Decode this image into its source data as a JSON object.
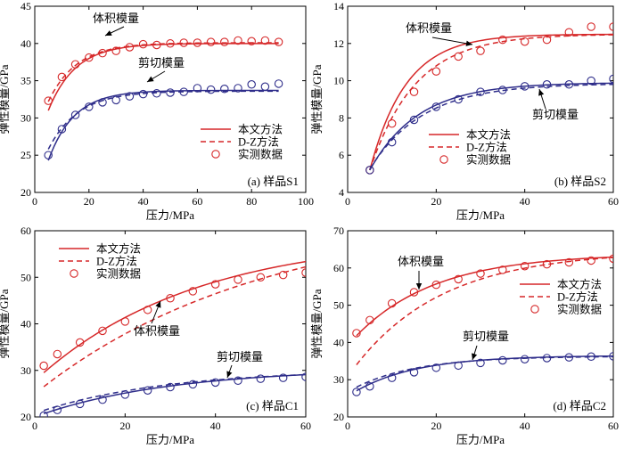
{
  "colors": {
    "ours": "#d62728",
    "dz": "#d62728",
    "meas": "#d62728",
    "shear": "#2e2d8a"
  },
  "chart_data": [
    {
      "id": "s1",
      "type": "line",
      "tag": "(a) 样品S1",
      "xlabel": "压力/MPa",
      "ylabel": "弹性模量/GPa",
      "xlim": [
        0,
        100
      ],
      "ylim": [
        20,
        45
      ],
      "xticks": [
        0,
        20,
        40,
        60,
        80,
        100
      ],
      "yticks": [
        20,
        25,
        30,
        35,
        40,
        45
      ],
      "annotations": {
        "bulk": "体积模量",
        "shear": "剪切模量"
      },
      "legend": {
        "ours": "本文方法",
        "dz": "D-Z方法",
        "meas": "实测数据"
      },
      "show_legend": true,
      "legend_pos": "bottom-right",
      "series": [
        {
          "name": "体积模量",
          "ours": {
            "type": "exp",
            "from": 5,
            "to": 90,
            "a": 40.0,
            "b": 9.0,
            "c": 10
          },
          "dz": {
            "type": "exp",
            "from": 5,
            "to": 90,
            "a": 40.1,
            "b": 7.9,
            "c": 10.5
          },
          "measured": [
            [
              5,
              32.3
            ],
            [
              10,
              35.5
            ],
            [
              15,
              37.2
            ],
            [
              20,
              38.1
            ],
            [
              25,
              38.7
            ],
            [
              30,
              39.0
            ],
            [
              35,
              39.5
            ],
            [
              40,
              39.9
            ],
            [
              45,
              39.8
            ],
            [
              50,
              40.0
            ],
            [
              55,
              40.1
            ],
            [
              60,
              40.1
            ],
            [
              65,
              40.2
            ],
            [
              70,
              40.2
            ],
            [
              75,
              40.4
            ],
            [
              80,
              40.3
            ],
            [
              85,
              40.4
            ],
            [
              90,
              40.2
            ]
          ]
        },
        {
          "name": "剪切模量",
          "ours": {
            "type": "exp",
            "from": 5,
            "to": 90,
            "a": 33.7,
            "b": 9.4,
            "c": 9.5
          },
          "dz": {
            "type": "exp",
            "from": 5,
            "to": 90,
            "a": 33.6,
            "b": 7.8,
            "c": 11
          },
          "measured": [
            [
              5,
              25.0
            ],
            [
              10,
              28.5
            ],
            [
              15,
              30.4
            ],
            [
              20,
              31.5
            ],
            [
              25,
              32.1
            ],
            [
              30,
              32.4
            ],
            [
              35,
              32.9
            ],
            [
              40,
              33.2
            ],
            [
              45,
              33.3
            ],
            [
              50,
              33.4
            ],
            [
              55,
              33.5
            ],
            [
              60,
              34.0
            ],
            [
              65,
              33.8
            ],
            [
              70,
              33.9
            ],
            [
              75,
              34.0
            ],
            [
              80,
              34.5
            ],
            [
              85,
              34.2
            ],
            [
              90,
              34.6
            ]
          ]
        }
      ]
    },
    {
      "id": "s2",
      "type": "line",
      "tag": "(b) 样品S2",
      "xlabel": "压力/MPa",
      "ylabel": "弹性模量/GPa",
      "xlim": [
        0,
        60
      ],
      "ylim": [
        4,
        14
      ],
      "xticks": [
        0,
        20,
        40,
        60
      ],
      "yticks": [
        4,
        6,
        8,
        10,
        12,
        14
      ],
      "annotations": {
        "bulk": "体积模量",
        "shear": "剪切模量"
      },
      "legend": {
        "ours": "本文方法",
        "dz": "D-Z方法",
        "meas": "实测数据"
      },
      "show_legend": true,
      "legend_pos": "left-middle",
      "series": [
        {
          "name": "体积模量",
          "ours": {
            "type": "exp",
            "from": 5,
            "to": 60,
            "a": 12.5,
            "b": 7.3,
            "c": 8.2
          },
          "dz": {
            "type": "exp",
            "from": 5,
            "to": 60,
            "a": 12.5,
            "b": 7.3,
            "c": 10.3
          },
          "measured": [
            [
              5,
              5.2
            ],
            [
              10,
              7.7
            ],
            [
              15,
              9.4
            ],
            [
              20,
              10.5
            ],
            [
              25,
              11.3
            ],
            [
              30,
              11.6
            ],
            [
              35,
              12.2
            ],
            [
              40,
              12.1
            ],
            [
              45,
              12.2
            ],
            [
              50,
              12.6
            ],
            [
              55,
              12.9
            ],
            [
              60,
              12.9
            ]
          ]
        },
        {
          "name": "剪切模量",
          "ours": {
            "type": "exp",
            "from": 5,
            "to": 60,
            "a": 9.9,
            "b": 4.7,
            "c": 11
          },
          "dz": {
            "type": "exp",
            "from": 5,
            "to": 60,
            "a": 9.85,
            "b": 4.6,
            "c": 12
          },
          "measured": [
            [
              5,
              5.2
            ],
            [
              10,
              6.7
            ],
            [
              15,
              7.9
            ],
            [
              20,
              8.6
            ],
            [
              25,
              9.0
            ],
            [
              30,
              9.4
            ],
            [
              35,
              9.5
            ],
            [
              40,
              9.7
            ],
            [
              45,
              9.8
            ],
            [
              50,
              9.8
            ],
            [
              55,
              10.0
            ],
            [
              60,
              10.1
            ]
          ]
        }
      ]
    },
    {
      "id": "c1",
      "type": "line",
      "tag": "(c) 样品C1",
      "xlabel": "压力/MPa",
      "ylabel": "弹性模量/GPa",
      "xlim": [
        0,
        60
      ],
      "ylim": [
        20,
        60
      ],
      "xticks": [
        0,
        20,
        40,
        60
      ],
      "yticks": [
        20,
        30,
        40,
        50,
        60
      ],
      "annotations": {
        "bulk": "体积模量",
        "shear": "剪切模量"
      },
      "legend": {
        "ours": "本文方法",
        "dz": "D-Z方法",
        "meas": "实测数据"
      },
      "show_legend": true,
      "legend_pos": "top-left",
      "series": [
        {
          "name": "体积模量",
          "ours": {
            "type": "exp",
            "from": 2,
            "to": 60,
            "a": 59,
            "b": 29.5,
            "c": 35
          },
          "dz": {
            "type": "exp",
            "from": 2,
            "to": 60,
            "a": 64,
            "b": 37.5,
            "c": 50
          },
          "measured": [
            [
              2,
              31.0
            ],
            [
              5,
              33.5
            ],
            [
              10,
              36.0
            ],
            [
              15,
              38.5
            ],
            [
              20,
              40.5
            ],
            [
              25,
              43.0
            ],
            [
              30,
              45.5
            ],
            [
              35,
              47.0
            ],
            [
              40,
              48.5
            ],
            [
              45,
              49.5
            ],
            [
              50,
              50.0
            ],
            [
              55,
              50.5
            ],
            [
              60,
              51.0
            ]
          ]
        },
        {
          "name": "剪切模量",
          "ours": {
            "type": "exp",
            "from": 2,
            "to": 60,
            "a": 30.5,
            "b": 9.8,
            "c": 30
          },
          "dz": {
            "type": "exp",
            "from": 2,
            "to": 60,
            "a": 30.2,
            "b": 8.8,
            "c": 28
          },
          "measured": [
            [
              2,
              20.3
            ],
            [
              5,
              21.5
            ],
            [
              10,
              22.8
            ],
            [
              15,
              23.7
            ],
            [
              20,
              24.8
            ],
            [
              25,
              25.7
            ],
            [
              30,
              26.4
            ],
            [
              35,
              27.0
            ],
            [
              40,
              27.4
            ],
            [
              45,
              27.8
            ],
            [
              50,
              28.2
            ],
            [
              55,
              28.4
            ],
            [
              60,
              28.6
            ]
          ]
        }
      ]
    },
    {
      "id": "c2",
      "type": "line",
      "tag": "(d) 样品C2",
      "xlabel": "压力/MPa",
      "ylabel": "弹性模量/GPa",
      "xlim": [
        0,
        60
      ],
      "ylim": [
        20,
        70
      ],
      "xticks": [
        0,
        20,
        40,
        60
      ],
      "yticks": [
        20,
        30,
        40,
        50,
        60,
        70
      ],
      "annotations": {
        "bulk": "体积模量",
        "shear": "剪切模量"
      },
      "legend": {
        "ours": "本文方法",
        "dz": "D-Z方法",
        "meas": "实测数据"
      },
      "show_legend": true,
      "legend_pos": "right-middle",
      "series": [
        {
          "name": "体积模量",
          "ours": {
            "type": "exp",
            "from": 2,
            "to": 60,
            "a": 63.8,
            "b": 22,
            "c": 18
          },
          "dz": {
            "type": "exp",
            "from": 2,
            "to": 60,
            "a": 64.5,
            "b": 30.5,
            "c": 20
          },
          "measured": [
            [
              2,
              42.5
            ],
            [
              5,
              46.0
            ],
            [
              10,
              50.5
            ],
            [
              15,
              53.5
            ],
            [
              20,
              55.5
            ],
            [
              25,
              57.0
            ],
            [
              30,
              58.5
            ],
            [
              35,
              59.5
            ],
            [
              40,
              60.5
            ],
            [
              45,
              61.0
            ],
            [
              50,
              61.5
            ],
            [
              55,
              62.0
            ],
            [
              60,
              62.5
            ]
          ]
        },
        {
          "name": "剪切模量",
          "ours": {
            "type": "exp",
            "from": 2,
            "to": 60,
            "a": 36.5,
            "b": 9.5,
            "c": 14
          },
          "dz": {
            "type": "exp",
            "from": 2,
            "to": 60,
            "a": 36.3,
            "b": 8.3,
            "c": 14
          },
          "measured": [
            [
              2,
              26.7
            ],
            [
              5,
              28.2
            ],
            [
              10,
              30.5
            ],
            [
              15,
              32.0
            ],
            [
              20,
              33.2
            ],
            [
              25,
              33.8
            ],
            [
              30,
              34.5
            ],
            [
              35,
              35.2
            ],
            [
              40,
              35.5
            ],
            [
              45,
              35.8
            ],
            [
              50,
              36.0
            ],
            [
              55,
              36.2
            ],
            [
              60,
              36.3
            ]
          ]
        }
      ]
    }
  ]
}
